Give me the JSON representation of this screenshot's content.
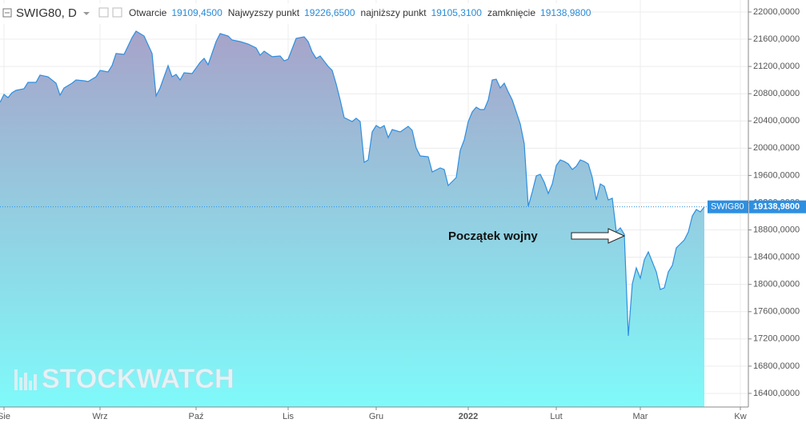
{
  "chart_data": {
    "type": "area",
    "title": "SWIG80, D",
    "ohlc_labels": [
      "Otwarcie",
      "Najwyzszy punkt",
      "najniższy punkt",
      "zamknięcie"
    ],
    "ohlc_values": [
      {
        "value": 19109.45,
        "label": "19109,4500"
      },
      {
        "value": 19226.65,
        "label": "19226,6500"
      },
      {
        "value": 19105.31,
        "label": "19105,3100"
      },
      {
        "value": 19138.98,
        "label": "19138,9800"
      }
    ],
    "annotation": "Początek wojny",
    "watermark": "STOCKWATCH",
    "x": [
      0,
      1,
      2,
      3,
      4,
      6,
      7,
      9,
      10,
      12,
      14,
      15,
      16,
      18,
      19,
      21,
      22,
      24,
      25,
      27,
      28,
      29,
      31,
      33,
      34,
      36,
      38,
      39,
      40,
      42,
      43,
      44,
      45,
      46,
      48,
      50,
      51,
      52,
      54,
      55,
      57,
      58,
      60,
      62,
      64,
      65,
      66,
      68,
      70,
      71,
      72,
      74,
      76,
      77,
      78,
      79,
      80,
      82,
      83,
      84,
      85,
      86,
      88,
      89,
      90,
      91,
      92,
      93,
      94,
      95,
      96,
      97,
      98,
      100,
      102,
      103,
      104,
      105,
      107,
      108,
      110,
      111,
      112,
      114,
      115,
      116,
      117,
      118,
      119,
      120,
      121,
      122,
      123,
      124,
      125,
      126,
      127,
      128,
      130,
      131,
      132,
      133,
      134,
      135,
      136,
      137,
      138,
      139,
      140,
      141,
      142,
      143,
      144,
      145,
      146,
      147,
      148,
      149,
      150,
      151,
      152,
      153,
      154,
      155,
      156,
      157,
      158,
      159,
      160,
      161,
      162,
      164,
      165,
      166,
      167,
      168,
      169,
      170,
      171,
      172,
      173,
      174,
      175,
      176
    ],
    "series": [
      {
        "name": "SWIG80",
        "color": "#2e8fe0",
        "values": [
          20673,
          20791,
          20744,
          20814,
          20849,
          20873,
          20967,
          20967,
          21073,
          21049,
          20955,
          20779,
          20885,
          20955,
          21002,
          20990,
          20979,
          21049,
          21143,
          21119,
          21213,
          21390,
          21378,
          21624,
          21718,
          21648,
          21390,
          20767,
          20885,
          21213,
          21049,
          21084,
          21002,
          21108,
          21096,
          21260,
          21319,
          21225,
          21566,
          21683,
          21648,
          21589,
          21566,
          21530,
          21472,
          21366,
          21425,
          21343,
          21354,
          21284,
          21307,
          21613,
          21636,
          21566,
          21413,
          21319,
          21354,
          21202,
          21143,
          20943,
          20709,
          20450,
          20392,
          20439,
          20392,
          19793,
          19828,
          20239,
          20333,
          20298,
          20333,
          20157,
          20274,
          20239,
          20321,
          20262,
          20004,
          19887,
          19875,
          19652,
          19711,
          19687,
          19452,
          19570,
          19969,
          20122,
          20392,
          20532,
          20603,
          20568,
          20568,
          20709,
          21002,
          21014,
          20885,
          20955,
          20826,
          20709,
          20356,
          20063,
          19147,
          19358,
          19593,
          19617,
          19499,
          19335,
          19476,
          19746,
          19828,
          19805,
          19769,
          19687,
          19734,
          19828,
          19805,
          19769,
          19570,
          19241,
          19476,
          19441,
          19241,
          19265,
          18771,
          18830,
          18736,
          17245,
          18008,
          18243,
          18091,
          18361,
          18478,
          18184,
          17926,
          17950,
          18184,
          18278,
          18537,
          18595,
          18654,
          18771,
          19006,
          19100,
          19065,
          19138.98
        ]
      }
    ],
    "xlim": [
      0,
      187
    ],
    "xticks": [
      {
        "value": 1,
        "label": "Sie"
      },
      {
        "value": 25,
        "label": "Wrz"
      },
      {
        "value": 49,
        "label": "Paź"
      },
      {
        "value": 72,
        "label": "Lis"
      },
      {
        "value": 94,
        "label": "Gru"
      },
      {
        "value": 117,
        "label": "2022"
      },
      {
        "value": 139,
        "label": "Lut"
      },
      {
        "value": 160,
        "label": "Mar"
      },
      {
        "value": 185,
        "label": "Kw"
      }
    ],
    "ylim": [
      16200,
      22176
    ],
    "yticks": [
      {
        "value": 16400,
        "label": "16400,0000"
      },
      {
        "value": 16800,
        "label": "16800,0000"
      },
      {
        "value": 17200,
        "label": "17200,0000"
      },
      {
        "value": 17600,
        "label": "17600,0000"
      },
      {
        "value": 18000,
        "label": "18000,0000"
      },
      {
        "value": 18400,
        "label": "18400,0000"
      },
      {
        "value": 18800,
        "label": "18800,0000"
      },
      {
        "value": 19200,
        "label": "19200,0000"
      },
      {
        "value": 19600,
        "label": "19600,0000"
      },
      {
        "value": 20000,
        "label": "20000,0000"
      },
      {
        "value": 20400,
        "label": "20400,0000"
      },
      {
        "value": 20800,
        "label": "20800,0000"
      },
      {
        "value": 21200,
        "label": "21200,0000"
      },
      {
        "value": 21600,
        "label": "21600,0000"
      },
      {
        "value": 22000,
        "label": "22000,0000"
      }
    ],
    "grid": true
  }
}
